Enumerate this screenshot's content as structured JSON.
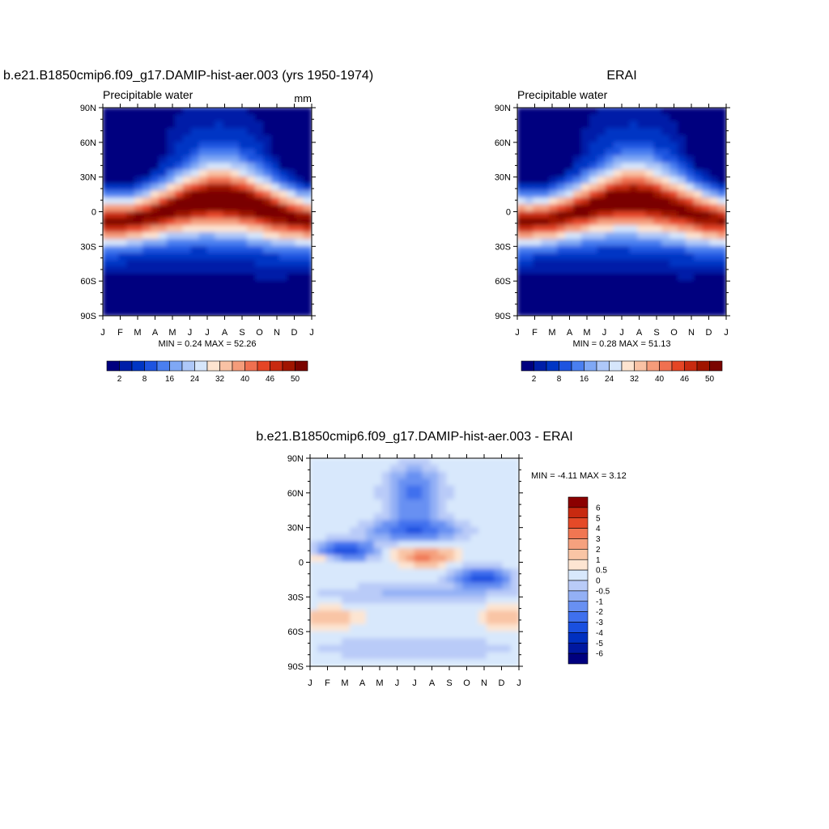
{
  "panels": [
    {
      "title": "b.e21.B1850cmip6.f09_g17.DAMIP-hist-aer.003 (yrs 1950-1974)",
      "subtitle_left": "Precipitable water",
      "subtitle_right": "mm",
      "stats": "MIN =   0.24 MAX =  52.26"
    },
    {
      "title": "ERAI",
      "subtitle_left": "Precipitable water",
      "subtitle_right": "",
      "stats": "MIN =   0.28 MAX =  51.13"
    },
    {
      "title": "b.e21.B1850cmip6.f09_g17.DAMIP-hist-aer.003 - ERAI",
      "subtitle_left": "",
      "subtitle_right": "",
      "stats": "MIN =  -4.11 MAX =   3.12"
    }
  ],
  "chart_data": [
    {
      "type": "heatmap",
      "title": "b.e21.B1850cmip6.f09_g17.DAMIP-hist-aer.003 (yrs 1950-1974)",
      "x_ticks": [
        "J",
        "F",
        "M",
        "A",
        "M",
        "J",
        "J",
        "A",
        "S",
        "O",
        "N",
        "D",
        "J"
      ],
      "y_ticks": [
        "90N",
        "60N",
        "30N",
        "0",
        "30S",
        "60S",
        "90S"
      ],
      "ylim": [
        -90,
        90
      ],
      "colorbar_labels": [
        "2",
        "8",
        "16",
        "24",
        "32",
        "40",
        "46",
        "50"
      ],
      "min": 0.24,
      "max": 52.26,
      "units": "mm"
    },
    {
      "type": "heatmap",
      "title": "ERAI",
      "x_ticks": [
        "J",
        "F",
        "M",
        "A",
        "M",
        "J",
        "J",
        "A",
        "S",
        "O",
        "N",
        "D",
        "J"
      ],
      "y_ticks": [
        "90N",
        "60N",
        "30N",
        "0",
        "30S",
        "60S",
        "90S"
      ],
      "ylim": [
        -90,
        90
      ],
      "colorbar_labels": [
        "2",
        "8",
        "16",
        "24",
        "32",
        "40",
        "46",
        "50"
      ],
      "min": 0.28,
      "max": 51.13
    },
    {
      "type": "heatmap",
      "title": "b.e21.B1850cmip6.f09_g17.DAMIP-hist-aer.003 - ERAI",
      "x_ticks": [
        "J",
        "F",
        "M",
        "A",
        "M",
        "J",
        "J",
        "A",
        "S",
        "O",
        "N",
        "D",
        "J"
      ],
      "y_ticks": [
        "90N",
        "60N",
        "30N",
        "0",
        "30S",
        "60S",
        "90S"
      ],
      "ylim": [
        -90,
        90
      ],
      "colorbar_labels": [
        "6",
        "5",
        "4",
        "3",
        "2",
        "1",
        "0.5",
        "0",
        "-0.5",
        "-1",
        "-2",
        "-3",
        "-4",
        "-5",
        "-6"
      ],
      "min": -4.11,
      "max": 3.12
    }
  ],
  "colors": {
    "abs_scale": [
      "#00007f",
      "#001ea8",
      "#0036c4",
      "#1e54e0",
      "#4a7ff0",
      "#7fa8f5",
      "#aec8f8",
      "#d6e6fb",
      "#fde4d0",
      "#f9c2a4",
      "#f59c7a",
      "#f07050",
      "#e54525",
      "#c82a10",
      "#a01500",
      "#7a0400"
    ],
    "diff_scale": [
      "#00007f",
      "#0018a0",
      "#0030c0",
      "#1a50e0",
      "#3f70ee",
      "#6890f2",
      "#93b0f5",
      "#b9cbf8",
      "#d8e8fc",
      "#fde5d2",
      "#f9c5a5",
      "#f5a17e",
      "#f07652",
      "#e54a28",
      "#c82a10",
      "#8b0000"
    ]
  }
}
